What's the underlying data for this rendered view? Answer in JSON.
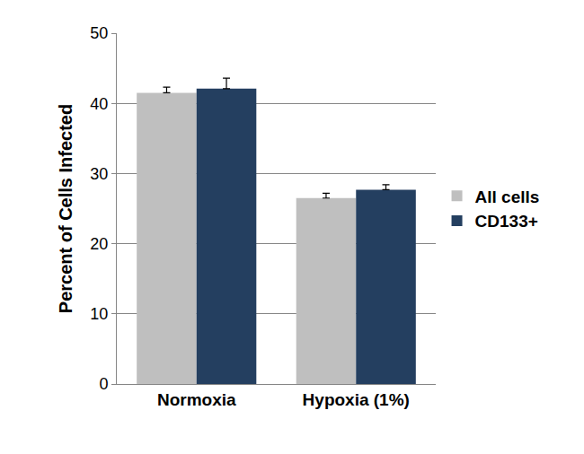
{
  "chart_data": {
    "type": "bar",
    "y_label": "Percent of Cells Infected",
    "categories": [
      "Normoxia",
      "Hypoxia (1%)"
    ],
    "series": [
      {
        "name": "All cells",
        "color": "#bfbfbf",
        "values": [
          41.5,
          26.5
        ],
        "errors": [
          0.8,
          0.7
        ]
      },
      {
        "name": "CD133+",
        "color": "#243f60",
        "values": [
          42.1,
          27.7
        ],
        "errors": [
          1.5,
          0.7
        ]
      }
    ],
    "ylim": [
      0,
      50
    ],
    "yticks": [
      0,
      10,
      20,
      30,
      40,
      50
    ],
    "grid": true,
    "legend": "right"
  }
}
